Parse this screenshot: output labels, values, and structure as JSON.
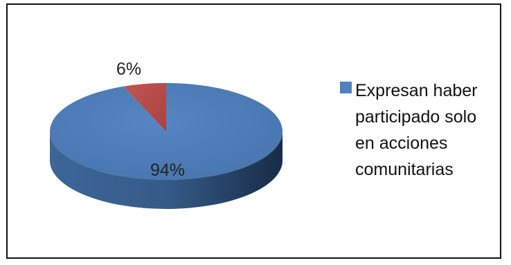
{
  "chart_data": {
    "type": "pie",
    "title": "",
    "series": [
      {
        "name": "Expresan haber participado solo en acciones comunitarias",
        "values": [
          94,
          6
        ]
      }
    ],
    "categories": [
      "Expresan haber participado solo en acciones comunitarias",
      ""
    ],
    "data_labels": [
      "94%",
      "6%"
    ],
    "slice_colors": [
      "#4F81BD",
      "#C0504D"
    ],
    "style": "3d",
    "legend_position": "right"
  },
  "legend": {
    "label": "Expresan haber participado solo en acciones comunitarias",
    "color": "#4F81BD"
  }
}
